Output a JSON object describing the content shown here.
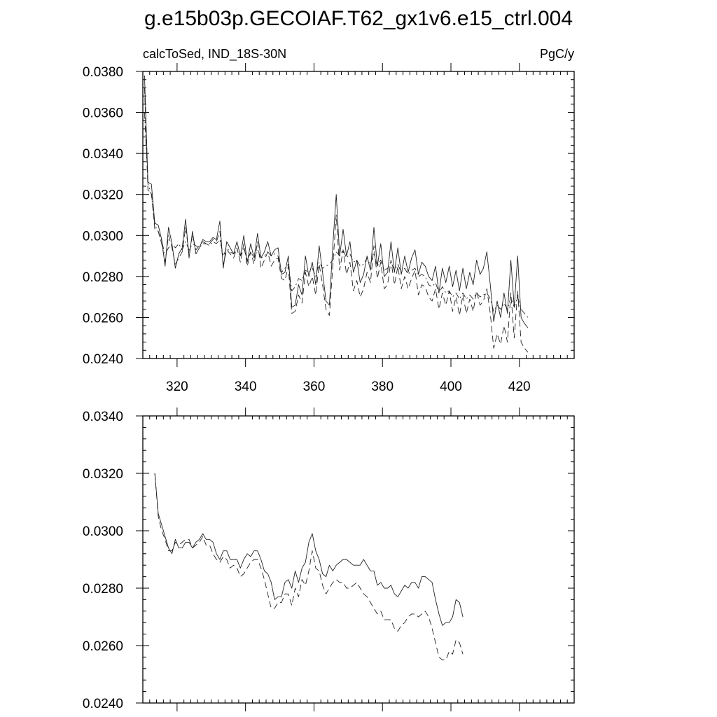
{
  "title": "g.e15b03p.GECOIAF.T62_gx1v6.e15_ctrl.004",
  "chart_data": [
    {
      "type": "line",
      "left_label": "calcToSed, IND_18S-30N",
      "right_label": "PgC/y",
      "xlim": [
        310,
        436
      ],
      "ylim": [
        0.024,
        0.038
      ],
      "xticks": [
        320,
        340,
        360,
        380,
        400,
        420
      ],
      "xtick_labels": [
        "320",
        "340",
        "360",
        "380",
        "400",
        "420"
      ],
      "yticks": [
        0.024,
        0.026,
        0.028,
        0.03,
        0.032,
        0.034,
        0.036,
        0.038
      ],
      "ytick_labels": [
        "0.0240",
        "0.0260",
        "0.0280",
        "0.0300",
        "0.0320",
        "0.0340",
        "0.0360",
        "0.0380"
      ],
      "x_start": 310.5,
      "x_step": 1,
      "series": [
        {
          "style": "solid",
          "values": [
            0.0378,
            0.0326,
            0.0325,
            0.0306,
            0.0305,
            0.0298,
            0.0285,
            0.0304,
            0.0296,
            0.0284,
            0.0291,
            0.0294,
            0.0308,
            0.0289,
            0.0302,
            0.0291,
            0.0294,
            0.0298,
            0.0297,
            0.0297,
            0.0299,
            0.0298,
            0.0307,
            0.0284,
            0.0297,
            0.0294,
            0.0291,
            0.0297,
            0.029,
            0.03,
            0.0287,
            0.0296,
            0.0289,
            0.0301,
            0.0289,
            0.0292,
            0.0297,
            0.029,
            0.0293,
            0.0294,
            0.0281,
            0.0282,
            0.029,
            0.0265,
            0.0266,
            0.0276,
            0.0271,
            0.029,
            0.028,
            0.0287,
            0.0276,
            0.0295,
            0.0282,
            0.0268,
            0.0266,
            0.0295,
            0.032,
            0.029,
            0.0303,
            0.029,
            0.0297,
            0.0282,
            0.0288,
            0.0277,
            0.0281,
            0.029,
            0.0283,
            0.0304,
            0.0285,
            0.0296,
            0.028,
            0.0282,
            0.0297,
            0.0282,
            0.0294,
            0.0281,
            0.029,
            0.0282,
            0.0289,
            0.0293,
            0.0281,
            0.0287,
            0.0285,
            0.028,
            0.0278,
            0.0285,
            0.0272,
            0.0284,
            0.0277,
            0.0285,
            0.0275,
            0.0283,
            0.0273,
            0.0284,
            0.0274,
            0.0282,
            0.0276,
            0.0288,
            0.0281,
            0.0284,
            0.0292,
            0.0276,
            0.0258,
            0.0268,
            0.026,
            0.0272,
            0.0262,
            0.0288,
            0.0265,
            0.029,
            0.026,
            0.0257,
            0.0255
          ]
        },
        {
          "style": "dashed",
          "values": [
            0.0372,
            0.0322,
            0.0321,
            0.0303,
            0.0302,
            0.0296,
            0.0287,
            0.03,
            0.0294,
            0.0286,
            0.0289,
            0.0292,
            0.0304,
            0.0291,
            0.03,
            0.0293,
            0.0295,
            0.0297,
            0.0296,
            0.0296,
            0.0298,
            0.0297,
            0.0302,
            0.0286,
            0.0293,
            0.0291,
            0.0289,
            0.0294,
            0.0287,
            0.0296,
            0.0285,
            0.0292,
            0.0286,
            0.0297,
            0.0284,
            0.0288,
            0.0292,
            0.0285,
            0.0288,
            0.0289,
            0.0279,
            0.0278,
            0.0285,
            0.0262,
            0.0263,
            0.0271,
            0.0267,
            0.0282,
            0.0275,
            0.028,
            0.0271,
            0.0286,
            0.0276,
            0.0264,
            0.0261,
            0.0285,
            0.031,
            0.0283,
            0.0293,
            0.0281,
            0.0287,
            0.0273,
            0.0278,
            0.027,
            0.0274,
            0.0282,
            0.0277,
            0.0295,
            0.0279,
            0.0287,
            0.0274,
            0.0276,
            0.0288,
            0.0276,
            0.0285,
            0.0274,
            0.028,
            0.0274,
            0.0279,
            0.0283,
            0.0271,
            0.0276,
            0.0275,
            0.027,
            0.0268,
            0.0274,
            0.0264,
            0.0272,
            0.0266,
            0.0273,
            0.0263,
            0.027,
            0.0261,
            0.0271,
            0.0262,
            0.0269,
            0.0263,
            0.0273,
            0.0266,
            0.0268,
            0.0274,
            0.0262,
            0.0245,
            0.0252,
            0.0247,
            0.0256,
            0.0248,
            0.0272,
            0.025,
            0.0273,
            0.0248,
            0.0245,
            0.0243
          ]
        },
        {
          "style": "dashdot",
          "values": [
            0.036,
            0.0325,
            0.032,
            0.0305,
            0.0302,
            0.0297,
            0.0291,
            0.0294,
            0.0296,
            0.0294,
            0.0296,
            0.0293,
            0.0297,
            0.0293,
            0.0296,
            0.0295,
            0.0294,
            0.0296,
            0.0296,
            0.0295,
            0.0297,
            0.0296,
            0.0298,
            0.029,
            0.0294,
            0.0292,
            0.0291,
            0.0293,
            0.029,
            0.0294,
            0.0288,
            0.0292,
            0.0289,
            0.0293,
            0.0289,
            0.029,
            0.0292,
            0.029,
            0.0291,
            0.029,
            0.0282,
            0.0284,
            0.0286,
            0.0273,
            0.0275,
            0.0279,
            0.0278,
            0.0283,
            0.0282,
            0.0284,
            0.028,
            0.0287,
            0.0284,
            0.0285,
            0.0286,
            0.0288,
            0.0292,
            0.029,
            0.0293,
            0.0289,
            0.0291,
            0.0287,
            0.0288,
            0.0285,
            0.0286,
            0.0289,
            0.0286,
            0.0291,
            0.0285,
            0.0288,
            0.0283,
            0.0284,
            0.0287,
            0.0283,
            0.0286,
            0.0282,
            0.0284,
            0.0281,
            0.0283,
            0.0284,
            0.028,
            0.0281,
            0.028,
            0.0276,
            0.0275,
            0.0277,
            0.0272,
            0.0275,
            0.0272,
            0.0273,
            0.027,
            0.0272,
            0.0269,
            0.0272,
            0.0269,
            0.0271,
            0.0269,
            0.0272,
            0.027,
            0.0271,
            0.0272,
            0.0269,
            0.0263,
            0.0266,
            0.0264,
            0.0267,
            0.0264,
            0.027,
            0.0265,
            0.027,
            0.0264,
            0.0262,
            0.026
          ]
        }
      ]
    },
    {
      "type": "line",
      "xlim": [
        310,
        436
      ],
      "ylim": [
        0.024,
        0.034
      ],
      "xticks": [
        320,
        340,
        360,
        380,
        400,
        420
      ],
      "yticks": [
        0.024,
        0.026,
        0.028,
        0.03,
        0.032,
        0.034
      ],
      "ytick_labels": [
        "0.0240",
        "0.0260",
        "0.0280",
        "0.0300",
        "0.0320",
        "0.0340"
      ],
      "x_start": 313.5,
      "x_step": 1,
      "series": [
        {
          "style": "solid",
          "values": [
            0.032,
            0.0306,
            0.0302,
            0.0298,
            0.0294,
            0.0292,
            0.0297,
            0.0294,
            0.0294,
            0.0296,
            0.0296,
            0.0294,
            0.0296,
            0.0297,
            0.0299,
            0.0297,
            0.0297,
            0.0296,
            0.0292,
            0.029,
            0.0293,
            0.0293,
            0.029,
            0.029,
            0.029,
            0.0287,
            0.029,
            0.0292,
            0.0291,
            0.0293,
            0.0293,
            0.029,
            0.0286,
            0.0285,
            0.0282,
            0.0276,
            0.0277,
            0.0277,
            0.0282,
            0.0283,
            0.028,
            0.0286,
            0.0282,
            0.0287,
            0.0289,
            0.0296,
            0.0299,
            0.0293,
            0.029,
            0.0285,
            0.0284,
            0.0288,
            0.0286,
            0.0288,
            0.0289,
            0.029,
            0.029,
            0.0289,
            0.0288,
            0.0288,
            0.0288,
            0.029,
            0.0288,
            0.0286,
            0.0286,
            0.0281,
            0.0282,
            0.028,
            0.028,
            0.0281,
            0.0278,
            0.0277,
            0.0279,
            0.0281,
            0.028,
            0.0282,
            0.0282,
            0.028,
            0.0284,
            0.0284,
            0.0283,
            0.0282,
            0.0276,
            0.0271,
            0.0267,
            0.0268,
            0.0268,
            0.027,
            0.0276,
            0.0275,
            0.027
          ]
        },
        {
          "style": "dashed",
          "values": [
            0.032,
            0.0305,
            0.03,
            0.0297,
            0.0293,
            0.0293,
            0.0296,
            0.0295,
            0.0296,
            0.0297,
            0.0297,
            0.0294,
            0.0295,
            0.0296,
            0.0298,
            0.0295,
            0.0295,
            0.0292,
            0.029,
            0.0289,
            0.0291,
            0.029,
            0.0287,
            0.0288,
            0.0287,
            0.0284,
            0.0285,
            0.0287,
            0.0289,
            0.029,
            0.029,
            0.0287,
            0.0283,
            0.0278,
            0.0273,
            0.0273,
            0.0275,
            0.0275,
            0.0278,
            0.0278,
            0.0274,
            0.028,
            0.0277,
            0.0283,
            0.0281,
            0.0286,
            0.0293,
            0.0287,
            0.0286,
            0.0281,
            0.0278,
            0.028,
            0.0282,
            0.0283,
            0.0282,
            0.0282,
            0.028,
            0.028,
            0.0281,
            0.0282,
            0.028,
            0.0278,
            0.0277,
            0.0275,
            0.0273,
            0.0271,
            0.0272,
            0.0269,
            0.0269,
            0.0269,
            0.0266,
            0.0265,
            0.0267,
            0.0268,
            0.027,
            0.0271,
            0.0271,
            0.027,
            0.0271,
            0.0272,
            0.027,
            0.0266,
            0.0261,
            0.0256,
            0.0255,
            0.0255,
            0.0258,
            0.0257,
            0.0262,
            0.0261,
            0.0257
          ]
        }
      ]
    }
  ]
}
